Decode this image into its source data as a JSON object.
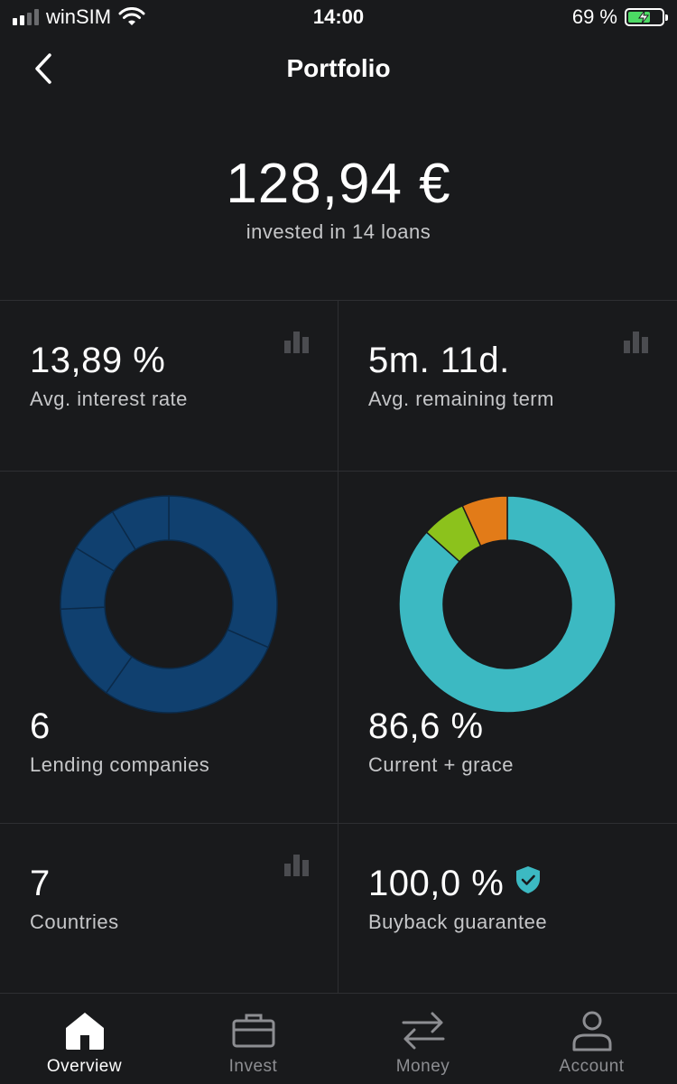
{
  "status_bar": {
    "carrier": "winSIM",
    "time": "14:00",
    "battery_percent": "69 %",
    "battery_level": 0.69,
    "signal_bars": 4,
    "signal_bars_active": 2
  },
  "header": {
    "title": "Portfolio",
    "back_icon": "chevron-left-icon"
  },
  "summary": {
    "amount": "128,94 €",
    "subtitle": "invested in 14 loans"
  },
  "stats": {
    "interest": {
      "value": "13,89 %",
      "label": "Avg. interest rate",
      "icon": "bar-chart-icon"
    },
    "term": {
      "value": "5m. 11d.",
      "label": "Avg. remaining term",
      "icon": "bar-chart-icon"
    },
    "companies": {
      "value": "6",
      "label": "Lending companies"
    },
    "current": {
      "value": "86,6 %",
      "label": "Current + grace"
    },
    "countries": {
      "value": "7",
      "label": "Countries",
      "icon": "bar-chart-icon"
    },
    "buyback": {
      "value": "100,0 %",
      "label": "Buyback guarantee",
      "icon": "shield-check-icon"
    }
  },
  "chart_data": [
    {
      "type": "pie",
      "chart": "lending-companies-donut",
      "values": [
        31.5,
        28.3,
        14.5,
        9.4,
        7.6,
        8.7
      ],
      "colors": [
        "#10406f",
        "#10406f",
        "#10406f",
        "#10406f",
        "#10406f",
        "#10406f"
      ],
      "separator_color": "#0b2a49"
    },
    {
      "type": "pie",
      "chart": "loan-status-donut",
      "values": [
        86.6,
        6.6,
        6.8
      ],
      "colors": [
        "#3cb9c2",
        "#8cc21c",
        "#e27b18"
      ],
      "separator_color": "#191a1c"
    }
  ],
  "colors": {
    "background": "#191a1c",
    "divider": "#2e2f32",
    "accent_teal": "#3cb9c2",
    "muted_text": "#c6c7c9",
    "nav_inactive": "#8d8e92"
  },
  "nav": {
    "items": [
      {
        "label": "Overview",
        "icon": "home-icon",
        "active": true
      },
      {
        "label": "Invest",
        "icon": "briefcase-icon",
        "active": false
      },
      {
        "label": "Money",
        "icon": "transfer-arrows-icon",
        "active": false
      },
      {
        "label": "Account",
        "icon": "user-icon",
        "active": false
      }
    ]
  }
}
